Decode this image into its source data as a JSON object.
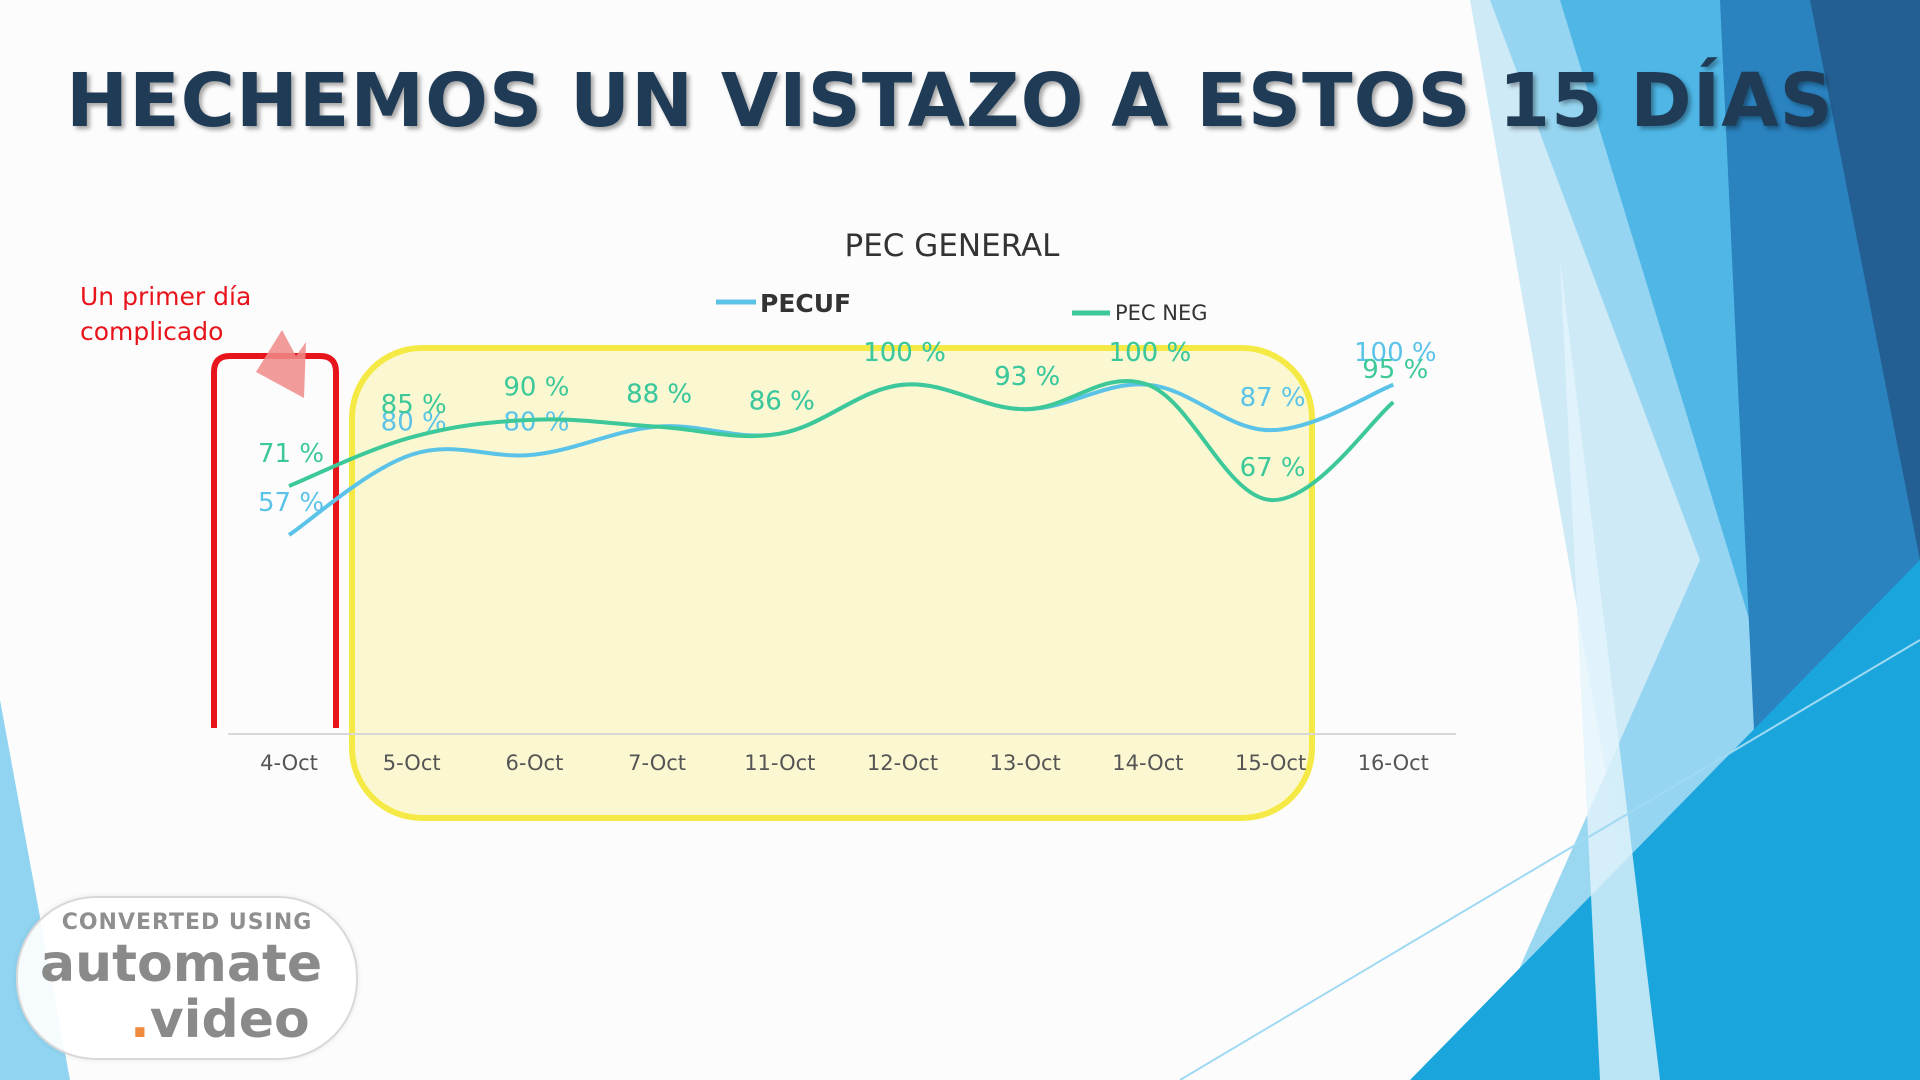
{
  "slide": {
    "title": "HECHEMOS UN VISTAZO A ESTOS 15 DÍAS"
  },
  "annotation": {
    "line1": "Un primer día",
    "line2": "complicado"
  },
  "watermark": {
    "line1": "CONVERTED USING",
    "line2": "automate",
    "dot": ".",
    "line3": "video"
  },
  "colors": {
    "pecuf": "#5bc3e8",
    "pec_neg": "#3dc89a",
    "highlight_first": "#e8141c",
    "highlight_rest_stroke": "#f5ea3c",
    "highlight_rest_fill": "#fbf8cf",
    "title": "#1f3b55",
    "axis_text": "#555555"
  },
  "chart_data": {
    "type": "line",
    "title": "PEC GENERAL",
    "categories": [
      "4-Oct",
      "5-Oct",
      "6-Oct",
      "7-Oct",
      "11-Oct",
      "12-Oct",
      "13-Oct",
      "14-Oct",
      "15-Oct",
      "16-Oct"
    ],
    "series": [
      {
        "name": "PECUF",
        "values": [
          57,
          80,
          80,
          88,
          86,
          100,
          93,
          100,
          87,
          100
        ],
        "labels": [
          "57 %",
          "80 %",
          "80 %",
          "88 %",
          "86 %",
          "100 %",
          "93 %",
          "100 %",
          "87 %",
          "100 %"
        ]
      },
      {
        "name": "PEC NEG",
        "values": [
          71,
          85,
          90,
          88,
          86,
          100,
          93,
          100,
          67,
          95
        ],
        "labels": [
          "71 %",
          "85 %",
          "90 %",
          "88 %",
          "86 %",
          "100 %",
          "93 %",
          "100 %",
          "67 %",
          "95 %"
        ]
      }
    ],
    "xlabel": "",
    "ylabel": "",
    "ylim": [
      0,
      130
    ],
    "grid": false,
    "legend": "top"
  }
}
